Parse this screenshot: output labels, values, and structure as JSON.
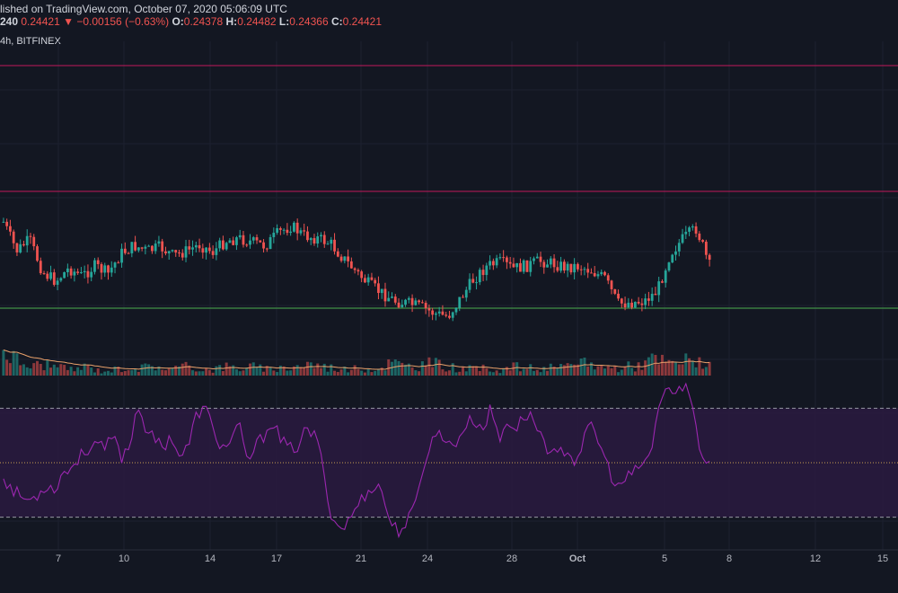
{
  "header": {
    "published": "lished on TradingView.com, October 07, 2020 05:06:09 UTC",
    "symbol_fragment": "240",
    "last": "0.24421",
    "change_arrow": "▼",
    "change": "−0.00156 (−0.63%)",
    "open_label": "O:",
    "open": "0.24378",
    "high_label": "H:",
    "high": "0.24482",
    "low_label": "L:",
    "low": "0.24366",
    "close_label": "C:",
    "close": "0.24421",
    "interval_exchange": "4h, BITFINEX"
  },
  "colors": {
    "background": "#131722",
    "up": "#26a69a",
    "down": "#ef5350",
    "resistance": "#c2185b",
    "support": "#4caf50",
    "rsi_line": "#9c27b0",
    "rsi_band": "#2a1a3f",
    "volume_ma": "#e8a06a"
  },
  "chart_data": [
    {
      "type": "candlestick",
      "title": "",
      "x_ticks": [
        "7",
        "10",
        "14",
        "17",
        "21",
        "24",
        "28",
        "Oct",
        "5",
        "8",
        "12",
        "15"
      ],
      "horizontal_lines": [
        {
          "name": "upper resistance",
          "color": "#c2185b"
        },
        {
          "name": "lower resistance",
          "color": "#c2185b"
        },
        {
          "name": "support",
          "color": "#4caf50"
        }
      ],
      "close_path": [
        0.95,
        0.72,
        0.81,
        0.55,
        0.48,
        0.58,
        0.52,
        0.6,
        0.54,
        0.7,
        0.76,
        0.72,
        0.75,
        0.68,
        0.72,
        0.77,
        0.71,
        0.8,
        0.82,
        0.79,
        0.76,
        0.86,
        0.92,
        0.84,
        0.82,
        0.78,
        0.66,
        0.55,
        0.45,
        0.38,
        0.32,
        0.3,
        0.27,
        0.22,
        0.2,
        0.35,
        0.5,
        0.6,
        0.63,
        0.58,
        0.6,
        0.64,
        0.62,
        0.59,
        0.6,
        0.56,
        0.5,
        0.3,
        0.31,
        0.32,
        0.4,
        0.7,
        0.82,
        0.9,
        0.6
      ]
    },
    {
      "type": "bar",
      "title": "Volume",
      "volume_path": [
        0.9,
        0.5,
        0.3,
        0.4,
        0.25,
        0.2,
        0.3,
        0.15,
        0.2,
        0.3,
        0.25,
        0.35,
        0.2,
        0.3,
        0.25,
        0.2,
        0.3,
        0.25,
        0.3,
        0.2,
        0.25,
        0.3,
        0.4,
        0.3,
        0.25,
        0.2,
        0.25,
        0.2,
        0.45,
        0.3,
        0.35,
        0.4,
        0.3,
        0.25,
        0.2,
        0.25,
        0.2,
        0.3,
        0.25,
        0.2,
        0.3,
        0.25,
        0.5,
        0.3,
        0.25,
        0.3,
        0.35,
        0.55,
        0.4,
        0.45,
        0.6,
        0.3
      ]
    },
    {
      "type": "line",
      "title": "RSI",
      "upper_band": 70,
      "middle": 50,
      "lower_band": 30,
      "ylim": [
        20,
        80
      ],
      "rsi_path": [
        45,
        40,
        38,
        36,
        38,
        42,
        40,
        46,
        48,
        52,
        55,
        58,
        54,
        60,
        52,
        56,
        72,
        62,
        58,
        56,
        60,
        52,
        56,
        68,
        70,
        62,
        55,
        58,
        64,
        50,
        56,
        60,
        66,
        58,
        55,
        56,
        62,
        60,
        50,
        30,
        26,
        28,
        34,
        38,
        42,
        40,
        28,
        25,
        28,
        34,
        50,
        58,
        62,
        56,
        58,
        64,
        66,
        62,
        70,
        58,
        66,
        62,
        68,
        66,
        60,
        54,
        52,
        56,
        50,
        58,
        64,
        56,
        48,
        40,
        44,
        46,
        50,
        52,
        72,
        78,
        74,
        80,
        70,
        52,
        51
      ]
    }
  ]
}
